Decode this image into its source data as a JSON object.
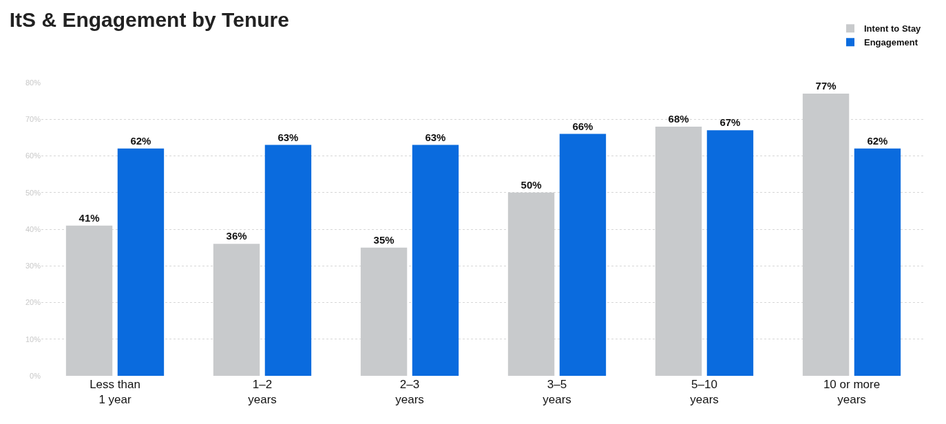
{
  "chart_data": {
    "type": "bar",
    "title": "ItS & Engagement by Tenure",
    "categories": [
      "Less than\n1 year",
      "1–2\nyears",
      "2–3\nyears",
      "3–5\nyears",
      "5–10\nyears",
      "10 or more\nyears"
    ],
    "series": [
      {
        "name": "Intent to Stay",
        "color": "#c8cacc",
        "values": [
          41,
          36,
          35,
          50,
          68,
          77
        ],
        "value_labels": [
          "41%",
          "36%",
          "35%",
          "50%",
          "68%",
          "77%"
        ]
      },
      {
        "name": "Engagement",
        "color": "#0a6bde",
        "values": [
          62,
          63,
          63,
          66,
          67,
          62
        ],
        "value_labels": [
          "62%",
          "63%",
          "63%",
          "66%",
          "67%",
          "62%"
        ]
      }
    ],
    "ylim": [
      0,
      80
    ],
    "yticks": [
      {
        "value": 0,
        "label": "0%"
      },
      {
        "value": 10,
        "label": "10%"
      },
      {
        "value": 20,
        "label": "20%"
      },
      {
        "value": 30,
        "label": "30%"
      },
      {
        "value": 40,
        "label": "40%"
      },
      {
        "value": 50,
        "label": "50%"
      },
      {
        "value": 60,
        "label": "60%"
      },
      {
        "value": 70,
        "label": "70%"
      },
      {
        "value": 80,
        "label": "80%"
      }
    ],
    "grid": "y",
    "legend": "top right"
  }
}
